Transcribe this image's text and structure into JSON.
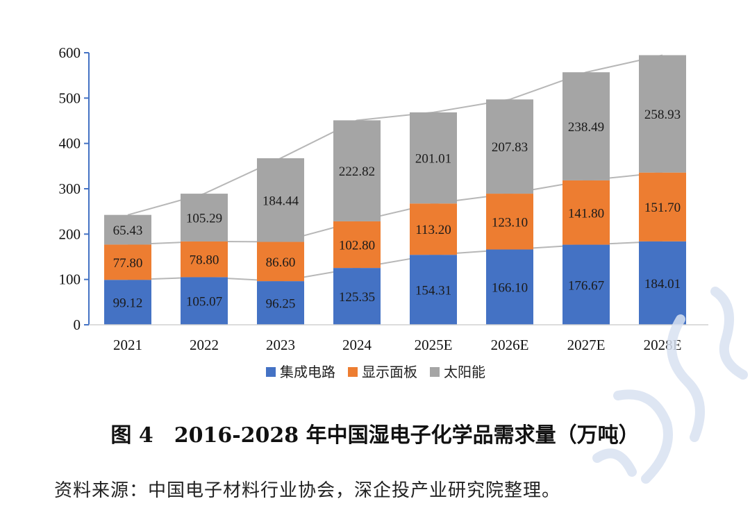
{
  "chart_data": {
    "type": "bar",
    "stacked": true,
    "categories": [
      "2021",
      "2022",
      "2023",
      "2024",
      "2025E",
      "2026E",
      "2027E",
      "2028E"
    ],
    "series": [
      {
        "name": "集成电路",
        "values": [
          99.12,
          105.07,
          96.25,
          125.35,
          154.31,
          166.1,
          176.67,
          184.01
        ],
        "labels": [
          "99.12",
          "105.07",
          "96.25",
          "125.35",
          "154.31",
          "166.10",
          "176.67",
          "184.01"
        ]
      },
      {
        "name": "显示面板",
        "values": [
          77.8,
          78.8,
          86.6,
          102.8,
          113.2,
          123.1,
          141.8,
          151.7
        ],
        "labels": [
          "77.80",
          "78.80",
          "86.60",
          "102.80",
          "113.20",
          "123.10",
          "141.80",
          "151.70"
        ]
      },
      {
        "name": "太阳能",
        "values": [
          65.43,
          105.29,
          184.44,
          222.82,
          201.01,
          207.83,
          238.49,
          258.93
        ],
        "labels": [
          "65.43",
          "105.29",
          "184.44",
          "222.82",
          "201.01",
          "207.83",
          "238.49",
          "258.93"
        ]
      }
    ],
    "colors": [
      "#4472c4",
      "#ed7d31",
      "#a5a5a5"
    ],
    "connector_color": "#b7b7b7",
    "ylim": [
      0,
      600
    ],
    "yticks": [
      0,
      100,
      200,
      300,
      400,
      500,
      600
    ],
    "legend_position": "bottom",
    "xlabel": "",
    "ylabel": ""
  },
  "figure": {
    "title": "图 4　2016-2028 年中国湿电子化学品需求量（万吨）",
    "source": "资料来源：中国电子材料行业协会，深企投产业研究院整理。"
  }
}
